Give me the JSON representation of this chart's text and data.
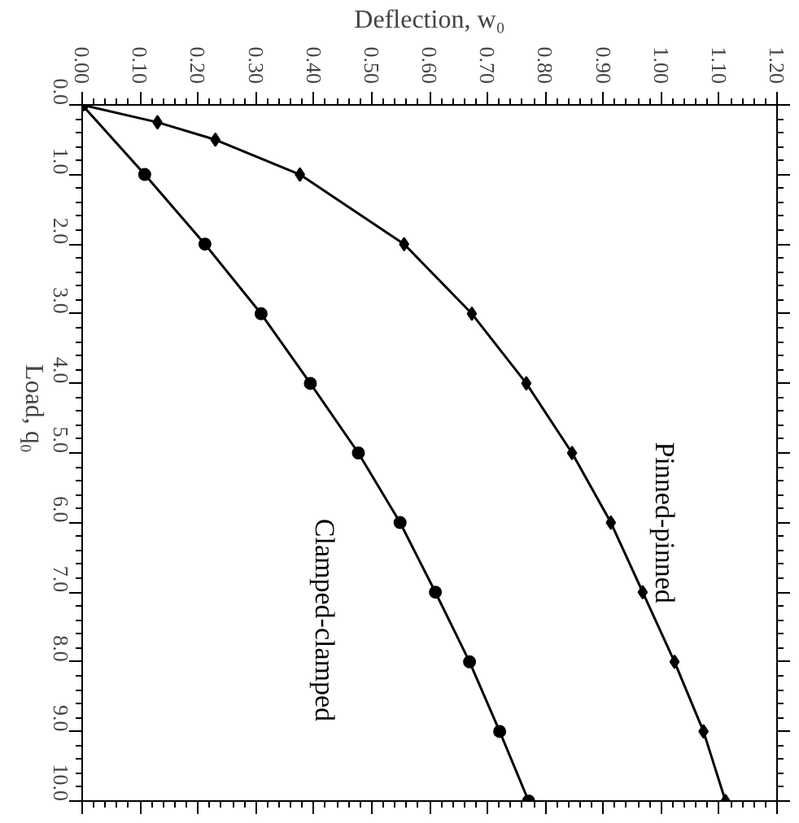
{
  "chart_data": {
    "type": "line",
    "xlabel": "Deflection, w₀",
    "ylabel": "Load, q₀",
    "xlim": [
      0,
      1.2
    ],
    "ylim": [
      10,
      0
    ],
    "xticks": [
      {
        "value": 0,
        "label": "0.00"
      },
      {
        "value": 0.1,
        "label": "0.10"
      },
      {
        "value": 0.2,
        "label": "0.20"
      },
      {
        "value": 0.3,
        "label": "0.30"
      },
      {
        "value": 0.4,
        "label": "0.40"
      },
      {
        "value": 0.5,
        "label": "0.50"
      },
      {
        "value": 0.6,
        "label": "0.60"
      },
      {
        "value": 0.7,
        "label": "0.70"
      },
      {
        "value": 0.8,
        "label": "0.80"
      },
      {
        "value": 0.9,
        "label": "0.90"
      },
      {
        "value": 1.0,
        "label": "1.00"
      },
      {
        "value": 1.1,
        "label": "1.10"
      },
      {
        "value": 1.2,
        "label": "1.20"
      }
    ],
    "yticks": [
      {
        "value": 0,
        "label": "0.0"
      },
      {
        "value": 1,
        "label": "1.0"
      },
      {
        "value": 2,
        "label": "2.0"
      },
      {
        "value": 3,
        "label": "3.0"
      },
      {
        "value": 4,
        "label": "4.0"
      },
      {
        "value": 5,
        "label": "5.0"
      },
      {
        "value": 6,
        "label": "6.0"
      },
      {
        "value": 7,
        "label": "7.0"
      },
      {
        "value": 8,
        "label": "8.0"
      },
      {
        "value": 9,
        "label": "9.0"
      },
      {
        "value": 10,
        "label": "10.0"
      }
    ],
    "grid": false,
    "series": [
      {
        "name": "Pinned-pinned",
        "color": "#000000",
        "marker": "diamond",
        "x": [
          0,
          0.13,
          0.23,
          0.376,
          0.556,
          0.673,
          0.767,
          0.846,
          0.913,
          0.968,
          1.023,
          1.073,
          1.111
        ],
        "values": [
          0,
          0.25,
          0.5,
          1,
          2,
          3,
          4,
          5,
          6,
          7,
          8,
          9,
          10
        ]
      },
      {
        "name": "Clamped-clamped",
        "color": "#000000",
        "marker": "circle",
        "x": [
          0,
          0.108,
          0.212,
          0.309,
          0.394,
          0.477,
          0.549,
          0.61,
          0.669,
          0.721,
          0.771
        ],
        "values": [
          0,
          1,
          2,
          3,
          4,
          5,
          6,
          7,
          8,
          9,
          10
        ]
      }
    ]
  }
}
